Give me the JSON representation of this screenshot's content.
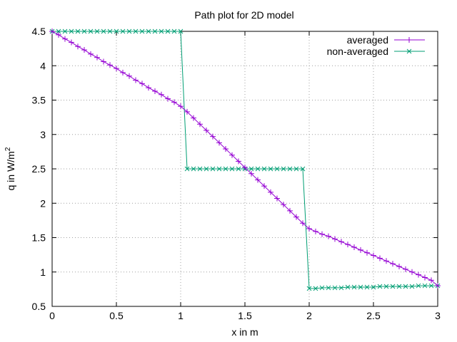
{
  "chart_data": {
    "type": "line",
    "title": "Path plot for 2D model",
    "xlabel": "x in m",
    "ylabel": {
      "text": "q in W/m",
      "superscript": "2"
    },
    "xlim": [
      0,
      3
    ],
    "ylim": [
      0.5,
      4.5
    ],
    "xticks": [
      "0",
      "0.5",
      "1",
      "1.5",
      "2",
      "2.5",
      "3"
    ],
    "yticks": [
      "0.5",
      "1",
      "1.5",
      "2",
      "2.5",
      "3",
      "3.5",
      "4",
      "4.5"
    ],
    "grid": true,
    "legend_position": "top-right",
    "series": [
      {
        "name": "averaged",
        "color": "#9400d3",
        "marker": "plus",
        "x": [
          0,
          0.05,
          0.1,
          0.15,
          0.2,
          0.25,
          0.3,
          0.35,
          0.4,
          0.45,
          0.5,
          0.55,
          0.6,
          0.65,
          0.7,
          0.75,
          0.8,
          0.85,
          0.9,
          0.95,
          1.0,
          1.05,
          1.1,
          1.15,
          1.2,
          1.25,
          1.3,
          1.35,
          1.4,
          1.45,
          1.5,
          1.55,
          1.6,
          1.65,
          1.7,
          1.75,
          1.8,
          1.85,
          1.9,
          1.95,
          2.0,
          2.05,
          2.1,
          2.15,
          2.2,
          2.25,
          2.3,
          2.35,
          2.4,
          2.45,
          2.5,
          2.55,
          2.6,
          2.65,
          2.7,
          2.75,
          2.8,
          2.85,
          2.9,
          2.95,
          3.0
        ],
        "y": [
          4.5,
          4.45,
          4.39,
          4.34,
          4.28,
          4.23,
          4.17,
          4.12,
          4.06,
          4.01,
          3.96,
          3.9,
          3.85,
          3.79,
          3.74,
          3.68,
          3.63,
          3.58,
          3.52,
          3.47,
          3.41,
          3.33,
          3.24,
          3.15,
          3.06,
          2.97,
          2.88,
          2.79,
          2.7,
          2.61,
          2.52,
          2.43,
          2.34,
          2.25,
          2.16,
          2.07,
          1.98,
          1.89,
          1.8,
          1.71,
          1.63,
          1.59,
          1.55,
          1.52,
          1.48,
          1.44,
          1.4,
          1.36,
          1.32,
          1.28,
          1.24,
          1.2,
          1.16,
          1.12,
          1.08,
          1.04,
          1.0,
          0.96,
          0.92,
          0.88,
          0.8
        ]
      },
      {
        "name": "non-averaged",
        "color": "#009e73",
        "marker": "cross",
        "x": [
          0,
          0.05,
          0.1,
          0.15,
          0.2,
          0.25,
          0.3,
          0.35,
          0.4,
          0.45,
          0.5,
          0.55,
          0.6,
          0.65,
          0.7,
          0.75,
          0.8,
          0.85,
          0.9,
          0.95,
          1.0,
          1.05,
          1.1,
          1.15,
          1.2,
          1.25,
          1.3,
          1.35,
          1.4,
          1.45,
          1.5,
          1.55,
          1.6,
          1.65,
          1.7,
          1.75,
          1.8,
          1.85,
          1.9,
          1.95,
          2.0,
          2.05,
          2.1,
          2.15,
          2.2,
          2.25,
          2.3,
          2.35,
          2.4,
          2.45,
          2.5,
          2.55,
          2.6,
          2.65,
          2.7,
          2.75,
          2.8,
          2.85,
          2.9,
          2.95,
          3.0
        ],
        "y": [
          4.5,
          4.5,
          4.5,
          4.5,
          4.5,
          4.5,
          4.5,
          4.5,
          4.5,
          4.5,
          4.5,
          4.5,
          4.5,
          4.5,
          4.5,
          4.5,
          4.5,
          4.5,
          4.5,
          4.5,
          4.5,
          2.5,
          2.5,
          2.5,
          2.5,
          2.5,
          2.5,
          2.5,
          2.5,
          2.5,
          2.5,
          2.5,
          2.5,
          2.5,
          2.5,
          2.5,
          2.5,
          2.5,
          2.5,
          2.5,
          0.76,
          0.76,
          0.77,
          0.77,
          0.77,
          0.77,
          0.78,
          0.78,
          0.78,
          0.78,
          0.78,
          0.79,
          0.79,
          0.79,
          0.79,
          0.79,
          0.79,
          0.8,
          0.8,
          0.8,
          0.8
        ]
      }
    ]
  }
}
